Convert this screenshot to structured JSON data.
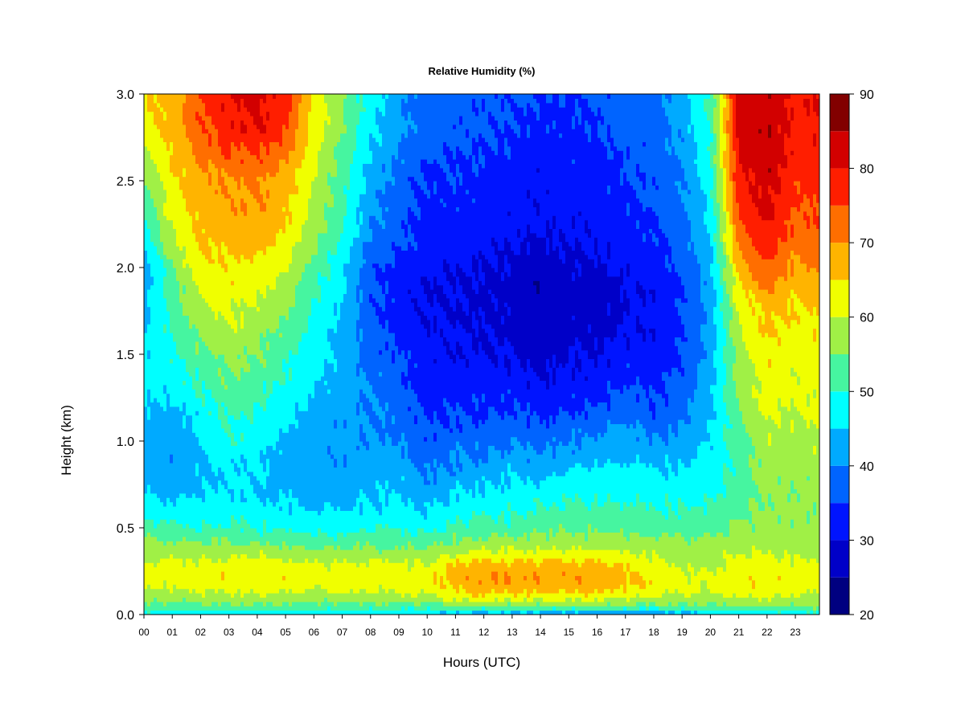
{
  "chart_data": {
    "type": "heatmap",
    "title": "Relative Humidity (%)",
    "xlabel": "Hours (UTC)",
    "ylabel": "Height (km)",
    "x_ticks": [
      "00",
      "01",
      "02",
      "03",
      "04",
      "05",
      "06",
      "07",
      "08",
      "09",
      "10",
      "11",
      "12",
      "13",
      "14",
      "15",
      "16",
      "17",
      "18",
      "19",
      "20",
      "21",
      "22",
      "23"
    ],
    "y_ticks": [
      "0.0",
      "0.5",
      "1.0",
      "1.5",
      "2.0",
      "2.5",
      "3.0"
    ],
    "xlim": [
      0,
      23.85
    ],
    "ylim": [
      0,
      3.0
    ],
    "colorbar": {
      "levels": [
        20,
        25,
        30,
        35,
        40,
        45,
        50,
        55,
        60,
        65,
        70,
        75,
        80,
        85,
        90
      ],
      "tick_labels": [
        "20",
        "30",
        "40",
        "50",
        "60",
        "70",
        "80",
        "90"
      ],
      "colors": [
        "#000080",
        "#0000c8",
        "#0014ff",
        "#0064ff",
        "#00aaff",
        "#00ffff",
        "#46f5a0",
        "#a0f046",
        "#f0ff00",
        "#ffb400",
        "#ff6e00",
        "#ff1e00",
        "#d20000",
        "#820000"
      ]
    },
    "heights_km": [
      0.0,
      0.05,
      0.1,
      0.15,
      0.2,
      0.25,
      0.3,
      0.35,
      0.4,
      0.45,
      0.5,
      0.6,
      0.7,
      0.8,
      0.9,
      1.0,
      1.1,
      1.2,
      1.3,
      1.4,
      1.5,
      1.6,
      1.7,
      1.8,
      1.9,
      2.0,
      2.1,
      2.2,
      2.3,
      2.4,
      2.5,
      2.6,
      2.7,
      2.8,
      2.9,
      3.0
    ],
    "hours": [
      0,
      1,
      2,
      3,
      4,
      5,
      6,
      7,
      8,
      9,
      10,
      11,
      12,
      13,
      14,
      15,
      16,
      17,
      18,
      19,
      20,
      21,
      22,
      23,
      23.85
    ],
    "values": [
      [
        47,
        53,
        56,
        60,
        61,
        62,
        60,
        58,
        57,
        55,
        52,
        48,
        45,
        43,
        42,
        42,
        43,
        45,
        46,
        47,
        46,
        45,
        44,
        43,
        42,
        41,
        44,
        48,
        50,
        52,
        55,
        57,
        60,
        63,
        64,
        65
      ],
      [
        46,
        53,
        57,
        60,
        62,
        62,
        61,
        58,
        56,
        54,
        51,
        47,
        44,
        42,
        41,
        41,
        42,
        44,
        46,
        48,
        49,
        50,
        51,
        52,
        53,
        55,
        58,
        60,
        62,
        63,
        64,
        65,
        66,
        67,
        67,
        67
      ],
      [
        46,
        54,
        58,
        61,
        63,
        63,
        61,
        58,
        56,
        53,
        50,
        47,
        45,
        44,
        44,
        45,
        46,
        48,
        50,
        52,
        54,
        56,
        58,
        60,
        62,
        63,
        65,
        66,
        67,
        68,
        68,
        70,
        72,
        74,
        75,
        76
      ],
      [
        45,
        54,
        58,
        61,
        63,
        64,
        62,
        58,
        56,
        54,
        51,
        48,
        46,
        46,
        47,
        49,
        50,
        52,
        54,
        55,
        57,
        58,
        60,
        62,
        63,
        64,
        66,
        67,
        68,
        69,
        70,
        73,
        76,
        78,
        79,
        80
      ],
      [
        46,
        54,
        58,
        62,
        64,
        64,
        62,
        59,
        56,
        53,
        50,
        47,
        45,
        45,
        46,
        47,
        49,
        50,
        52,
        54,
        55,
        57,
        58,
        60,
        62,
        63,
        66,
        68,
        69,
        70,
        71,
        73,
        77,
        80,
        81,
        82
      ],
      [
        46,
        54,
        58,
        62,
        64,
        63,
        61,
        58,
        55,
        52,
        49,
        46,
        44,
        43,
        43,
        44,
        45,
        47,
        48,
        50,
        51,
        53,
        55,
        57,
        58,
        60,
        62,
        64,
        66,
        67,
        68,
        70,
        73,
        76,
        77,
        78
      ],
      [
        47,
        53,
        57,
        60,
        62,
        62,
        60,
        57,
        54,
        51,
        48,
        45,
        43,
        42,
        42,
        42,
        43,
        44,
        45,
        46,
        47,
        48,
        49,
        50,
        51,
        53,
        55,
        57,
        58,
        59,
        60,
        61,
        62,
        63,
        63,
        64
      ],
      [
        47,
        53,
        57,
        61,
        63,
        62,
        60,
        57,
        54,
        51,
        48,
        45,
        43,
        42,
        41,
        41,
        41,
        42,
        42,
        43,
        43,
        43,
        44,
        45,
        46,
        47,
        48,
        50,
        51,
        52,
        52,
        53,
        54,
        55,
        55,
        56
      ],
      [
        46,
        53,
        58,
        61,
        63,
        63,
        61,
        58,
        55,
        52,
        49,
        46,
        44,
        43,
        42,
        41,
        40,
        40,
        40,
        39,
        38,
        37,
        37,
        36,
        36,
        36,
        38,
        40,
        41,
        42,
        43,
        44,
        45,
        46,
        47,
        47
      ],
      [
        45,
        53,
        58,
        61,
        62,
        62,
        60,
        57,
        54,
        52,
        50,
        47,
        45,
        44,
        42,
        40,
        39,
        38,
        37,
        36,
        35,
        34,
        33,
        33,
        33,
        34,
        35,
        36,
        37,
        37,
        38,
        39,
        40,
        41,
        41,
        42
      ],
      [
        44,
        53,
        58,
        62,
        63,
        62,
        60,
        57,
        54,
        51,
        48,
        45,
        42,
        40,
        38,
        36,
        35,
        34,
        33,
        32,
        31,
        31,
        30,
        30,
        30,
        31,
        32,
        33,
        33,
        34,
        34,
        35,
        36,
        37,
        37,
        37
      ],
      [
        42,
        55,
        62,
        66,
        68,
        67,
        64,
        60,
        57,
        54,
        51,
        48,
        45,
        42,
        40,
        38,
        36,
        34,
        33,
        32,
        31,
        31,
        30,
        30,
        30,
        31,
        32,
        33,
        33,
        34,
        34,
        35,
        36,
        37,
        37,
        37
      ],
      [
        42,
        55,
        63,
        68,
        70,
        69,
        66,
        62,
        58,
        55,
        52,
        49,
        46,
        43,
        40,
        38,
        36,
        34,
        33,
        32,
        30,
        30,
        29,
        29,
        29,
        30,
        31,
        32,
        32,
        33,
        33,
        34,
        35,
        36,
        36,
        36
      ],
      [
        42,
        55,
        63,
        67,
        69,
        69,
        66,
        62,
        58,
        55,
        52,
        49,
        47,
        45,
        42,
        40,
        37,
        35,
        33,
        31,
        30,
        29,
        29,
        28,
        28,
        29,
        30,
        31,
        32,
        32,
        33,
        33,
        34,
        35,
        35,
        36
      ],
      [
        41,
        54,
        62,
        67,
        69,
        68,
        66,
        62,
        58,
        56,
        54,
        51,
        48,
        44,
        41,
        38,
        35,
        33,
        31,
        29,
        28,
        27,
        27,
        26,
        26,
        27,
        29,
        30,
        31,
        31,
        32,
        32,
        33,
        34,
        34,
        35
      ],
      [
        41,
        55,
        62,
        67,
        69,
        69,
        66,
        62,
        58,
        56,
        54,
        51,
        49,
        46,
        43,
        40,
        37,
        34,
        32,
        31,
        30,
        29,
        28,
        28,
        28,
        29,
        30,
        31,
        31,
        32,
        32,
        33,
        33,
        34,
        34,
        35
      ],
      [
        40,
        55,
        62,
        67,
        69,
        68,
        66,
        62,
        58,
        56,
        54,
        51,
        49,
        47,
        44,
        41,
        38,
        35,
        33,
        31,
        30,
        29,
        28,
        28,
        28,
        29,
        30,
        31,
        32,
        32,
        33,
        33,
        34,
        35,
        35,
        36
      ],
      [
        39,
        54,
        61,
        65,
        66,
        66,
        64,
        61,
        58,
        56,
        54,
        51,
        49,
        47,
        45,
        43,
        41,
        38,
        36,
        34,
        32,
        31,
        30,
        30,
        30,
        31,
        32,
        33,
        34,
        34,
        35,
        35,
        36,
        37,
        37,
        38
      ],
      [
        40,
        54,
        60,
        63,
        64,
        63,
        61,
        59,
        57,
        55,
        53,
        50,
        48,
        46,
        43,
        40,
        37,
        35,
        34,
        33,
        32,
        31,
        31,
        31,
        31,
        32,
        33,
        34,
        35,
        36,
        36,
        37,
        37,
        38,
        38,
        38
      ],
      [
        42,
        54,
        59,
        61,
        61,
        61,
        59,
        58,
        57,
        55,
        53,
        50,
        48,
        46,
        44,
        42,
        40,
        38,
        37,
        36,
        35,
        35,
        35,
        35,
        35,
        36,
        37,
        38,
        39,
        39,
        40,
        40,
        41,
        42,
        42,
        42
      ],
      [
        43,
        54,
        58,
        60,
        60,
        60,
        58,
        57,
        56,
        55,
        53,
        51,
        49,
        48,
        47,
        46,
        45,
        44,
        43,
        43,
        42,
        42,
        42,
        42,
        42,
        43,
        44,
        45,
        46,
        47,
        48,
        49,
        50,
        50,
        51,
        51
      ],
      [
        46,
        56,
        60,
        63,
        64,
        64,
        62,
        60,
        58,
        57,
        56,
        54,
        53,
        52,
        52,
        53,
        54,
        55,
        56,
        57,
        58,
        59,
        60,
        62,
        64,
        67,
        70,
        73,
        75,
        77,
        78,
        80,
        81,
        82,
        82,
        82
      ],
      [
        47,
        56,
        60,
        63,
        64,
        64,
        62,
        60,
        59,
        58,
        57,
        56,
        56,
        57,
        58,
        59,
        60,
        61,
        62,
        63,
        64,
        65,
        66,
        68,
        71,
        74,
        77,
        79,
        81,
        82,
        83,
        84,
        84,
        84,
        84,
        84
      ],
      [
        47,
        55,
        59,
        62,
        63,
        63,
        61,
        59,
        58,
        57,
        56,
        56,
        56,
        56,
        57,
        58,
        59,
        60,
        61,
        61,
        62,
        63,
        64,
        65,
        67,
        69,
        71,
        73,
        74,
        75,
        76,
        77,
        78,
        78,
        79,
        79
      ],
      [
        47,
        55,
        59,
        62,
        63,
        63,
        61,
        59,
        58,
        57,
        56,
        56,
        56,
        57,
        58,
        59,
        60,
        61,
        62,
        63,
        63,
        64,
        65,
        66,
        68,
        70,
        72,
        74,
        75,
        76,
        77,
        78,
        79,
        79,
        80,
        80
      ]
    ]
  }
}
